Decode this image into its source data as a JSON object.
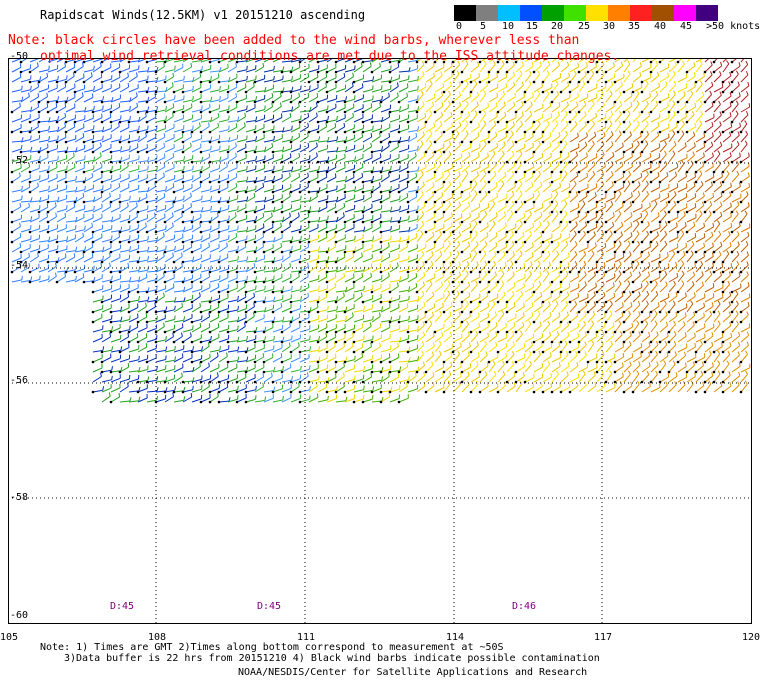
{
  "title": "Rapidscat Winds(12.5KM) v1 20151210 ascending",
  "note_line1": "Note: black circles have been added to the wind barbs, wherever less than",
  "note_line2": "optimal wind retrieval conditions are met due to the ISS attitude changes.",
  "colorbar": {
    "labels": [
      "0",
      "5",
      "10",
      "15",
      "20",
      "25",
      "30",
      "35",
      "40",
      "45",
      ">50 knots"
    ],
    "colors": [
      "#000000",
      "#7f7f7f",
      "#00bfff",
      "#0050ff",
      "#00a000",
      "#40e000",
      "#ffe000",
      "#ff8000",
      "#ff2020",
      "#a05000",
      "#ff00ff",
      "#400080"
    ]
  },
  "axes": {
    "lat_labels": [
      "-50",
      "-52",
      "-54",
      "-56",
      "-58",
      "-60"
    ],
    "lon_labels": [
      "105",
      "108",
      "111",
      "114",
      "117",
      "120"
    ]
  },
  "time_labels": [
    "D:45",
    "D:45",
    "D:46"
  ],
  "footer": {
    "line1": "Note: 1) Times are GMT 2)Times along bottom correspond to measurement at ~50S",
    "line2": "3)Data buffer is 22 hrs from 20151210 4) Black wind barbs indicate possible contamination",
    "credit": "NOAA/NESDIS/Center for Satellite Applications and Research"
  }
}
